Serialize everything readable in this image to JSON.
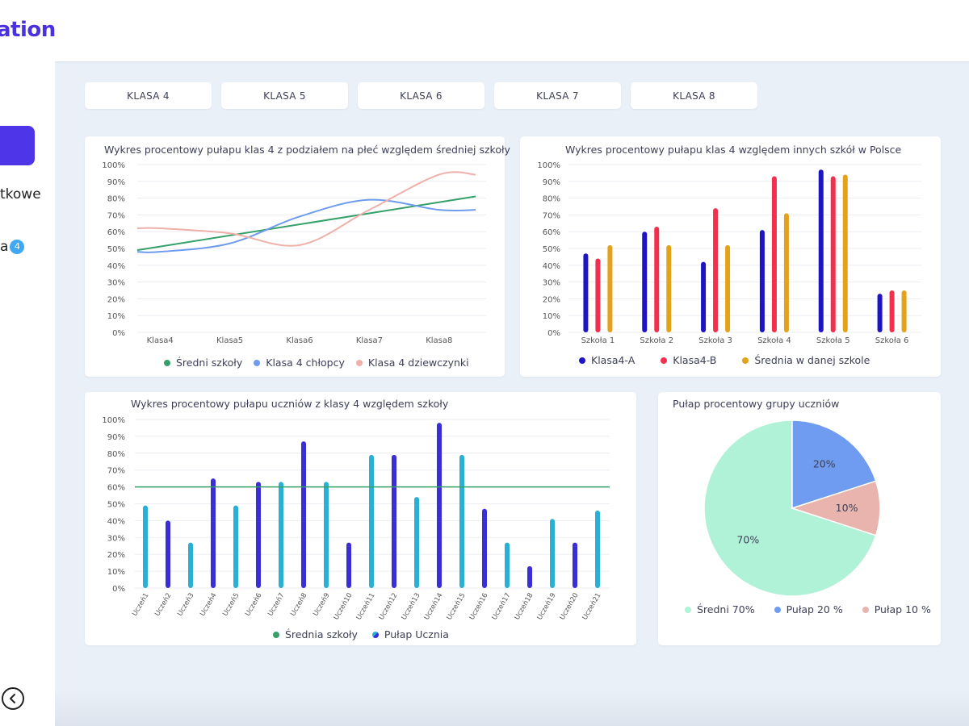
{
  "app": {
    "logo_text": "ation"
  },
  "sidebar": {
    "items": [
      {
        "label": "tkowe"
      },
      {
        "label": "a",
        "badge": "4"
      }
    ]
  },
  "tabs": [
    "KLASA 4",
    "KLASA 5",
    "KLASA 6",
    "KLASA 7",
    "KLASA 8"
  ],
  "colors": {
    "accent": "#4f35e8",
    "green": "#35a06a",
    "blue_line": "#6e9cec",
    "pink_line": "#efb0aa",
    "bar_navy": "#1e14c4",
    "bar_red": "#f2304d",
    "bar_gold": "#e3a21a",
    "bar_purple": "#3a2ed8",
    "bar_cyan": "#2ab0d4",
    "pie_mint": "#b0f2d8",
    "pie_blue": "#6f9cf0",
    "pie_pink": "#e8b4ad"
  },
  "chart_data": [
    {
      "type": "line",
      "title": "Wykres procentowy pułapu klas 4 z podziałem na płeć względem średniej szkoły",
      "categories": [
        "Klasa4",
        "Klasa5",
        "Klasa6",
        "Klasa7",
        "Klasa8"
      ],
      "y_ticks": [
        "100%",
        "90%",
        "80%",
        "70%",
        "60%",
        "50%",
        "40%",
        "30%",
        "20%",
        "10%",
        "0%"
      ],
      "ylim": [
        0,
        100
      ],
      "series": [
        {
          "name": "Średni szkoły",
          "color": "#35a06a",
          "values": [
            49,
            57,
            65,
            73,
            81
          ]
        },
        {
          "name": "Klasa 4 chłopcy",
          "color": "#6e9cec",
          "values": [
            48,
            53,
            69,
            79,
            73
          ]
        },
        {
          "name": "Klasa 4 dziewczynki",
          "color": "#efb0aa",
          "values": [
            62,
            59,
            52,
            73,
            94
          ]
        }
      ]
    },
    {
      "type": "bar",
      "title": "Wykres procentowy pułapu klas 4 względem innych szkół w Polsce",
      "categories": [
        "Szkoła 1",
        "Szkoła 2",
        "Szkoła 3",
        "Szkoła 4",
        "Szkoła 5",
        "Szkoła 6"
      ],
      "y_ticks": [
        "100%",
        "90%",
        "80%",
        "70%",
        "60%",
        "50%",
        "40%",
        "30%",
        "20%",
        "10%",
        "0%"
      ],
      "ylim": [
        0,
        100
      ],
      "series": [
        {
          "name": "Klasa4-A",
          "color": "#1e14c4",
          "values": [
            47,
            60,
            42,
            61,
            97,
            23
          ]
        },
        {
          "name": "Klasa4-B",
          "color": "#f2304d",
          "values": [
            44,
            63,
            74,
            93,
            93,
            25
          ]
        },
        {
          "name": "Średnia w danej szkole",
          "color": "#e3a21a",
          "values": [
            52,
            52,
            52,
            71,
            94,
            25
          ]
        }
      ]
    },
    {
      "type": "bar",
      "title": "Wykres procentowy pułapu uczniów z klasy 4  względem szkoły",
      "categories": [
        "Uczeń1",
        "Uczeń2",
        "Uczeń3",
        "Uczeń4",
        "Uczeń5",
        "Uczeń6",
        "Uczeń7",
        "Uczeń8",
        "Uczeń9",
        "Uczeń10",
        "Uczeń11",
        "Uczeń12",
        "Uczeń13",
        "Uczeń14",
        "Uczeń15",
        "Uczeń16",
        "Uczeń17",
        "Uczeń18",
        "Uczeń19",
        "Uczeń20",
        "Uczeń21"
      ],
      "y_ticks": [
        "100%",
        "90%",
        "80%",
        "70%",
        "60%",
        "50%",
        "40%",
        "30%",
        "20%",
        "10%",
        "0%"
      ],
      "ylim": [
        0,
        100
      ],
      "values": [
        49,
        40,
        27,
        65,
        49,
        63,
        63,
        87,
        63,
        27,
        79,
        79,
        54,
        98,
        79,
        47,
        27,
        13,
        41,
        27,
        46
      ],
      "bar_colors": [
        "#2ab0d4",
        "#3a2ed8",
        "#2ab0d4",
        "#3a2ed8",
        "#2ab0d4",
        "#3a2ed8",
        "#2ab0d4",
        "#3a2ed8",
        "#2ab0d4",
        "#3a2ed8",
        "#2ab0d4",
        "#3a2ed8",
        "#2ab0d4",
        "#3a2ed8",
        "#2ab0d4",
        "#3a2ed8",
        "#2ab0d4",
        "#3a2ed8",
        "#2ab0d4",
        "#3a2ed8",
        "#2ab0d4"
      ],
      "reference_line": {
        "name": "Średnia szkoły",
        "value": 60,
        "color": "#35a06a"
      },
      "series_legend": [
        {
          "name": "Średnia szkoły",
          "color": "#35a06a"
        },
        {
          "name": "Pułap Ucznia",
          "color": "#3a2ed8"
        }
      ]
    },
    {
      "type": "pie",
      "title": "Pułap procentowy grupy uczniów",
      "slices": [
        {
          "name": "Średni 70%",
          "value": 70,
          "label": "70%",
          "color": "#b0f2d8"
        },
        {
          "name": "Pułap 20 %",
          "value": 20,
          "label": "20%",
          "color": "#6f9cf0"
        },
        {
          "name": "Pułap 10 %",
          "value": 10,
          "label": "10%",
          "color": "#e8b4ad"
        }
      ]
    }
  ]
}
